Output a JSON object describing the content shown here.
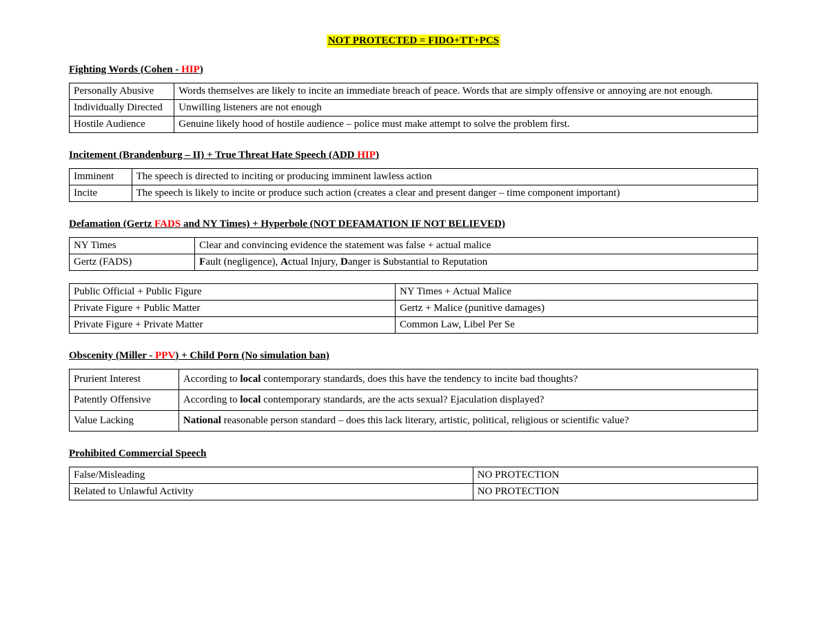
{
  "colors": {
    "highlight_bg": "#ffff00",
    "accent": "#ff0000",
    "text": "#000000",
    "page_bg": "#ffffff",
    "border": "#000000"
  },
  "typography": {
    "font_family": "Times New Roman",
    "base_fontsize_pt": 11
  },
  "title": "NOT PROTECTED = FIDO+TT+PCS",
  "s1": {
    "heading_pre": "Fighting Words (Cohen - ",
    "heading_accent": "HIP",
    "heading_post": ")",
    "rows": [
      {
        "k": "Personally Abusive",
        "v": "Words themselves are likely to incite an immediate breach of peace. Words that are simply offensive or annoying are not enough."
      },
      {
        "k": "Individually Directed",
        "v": "Unwilling listeners are not enough"
      },
      {
        "k": "Hostile Audience",
        "v": "Genuine likely hood of hostile audience – police must make attempt to solve the problem first."
      }
    ]
  },
  "s2": {
    "heading_pre": "Incitement (Brandenburg – II) + True Threat Hate Speech (ADD ",
    "heading_accent": "HIP",
    "heading_post": ")",
    "rows": [
      {
        "k": "Imminent",
        "v": "The speech is directed to inciting or producing imminent lawless action"
      },
      {
        "k": "Incite",
        "v": "The speech is likely to incite or produce  such action (creates a clear and present danger – time component important)"
      }
    ]
  },
  "s3": {
    "heading_pre": "Defamation (Gertz ",
    "heading_accent": "FADS",
    "heading_post": " and NY Times) + Hyperbole (NOT DEFAMATION IF NOT BELIEVED)",
    "rows_a": [
      {
        "k": "NY Times",
        "v": "Clear and convincing evidence the statement was false + actual malice"
      },
      {
        "k": "Gertz (FADS)",
        "v_html": "<b>F</b>ault (negligence), <b>A</b>ctual Injury, <b>D</b>anger is <b>S</b>ubstantial to Reputation"
      }
    ],
    "rows_b": [
      {
        "k": "Public Official + Public Figure",
        "v": "NY Times + Actual Malice"
      },
      {
        "k": "Private Figure + Public Matter",
        "v": "Gertz  + Malice (punitive damages)"
      },
      {
        "k": "Private Figure + Private Matter",
        "v": "Common Law, Libel Per Se"
      }
    ]
  },
  "s4": {
    "heading_pre": "Obscenity (Miller - ",
    "heading_accent": "PPV",
    "heading_post": ") + Child Porn (No simulation ban)",
    "rows": [
      {
        "k": "Prurient Interest",
        "v_html": "According to <b>local</b> contemporary standards, does this have the tendency to incite bad thoughts?"
      },
      {
        "k": "Patently Offensive",
        "v_html": "According to <b>local</b> contemporary standards, are the acts sexual? Ejaculation displayed?"
      },
      {
        "k": "Value Lacking",
        "v_html": "<b>National</b> reasonable person standard – does this lack literary, artistic, political, religious or scientific value?"
      }
    ]
  },
  "s5": {
    "heading": "Prohibited Commercial Speech",
    "rows": [
      {
        "k": "False/Misleading",
        "v": "NO PROTECTION"
      },
      {
        "k": "Related to Unlawful Activity",
        "v": "NO PROTECTION"
      }
    ]
  }
}
